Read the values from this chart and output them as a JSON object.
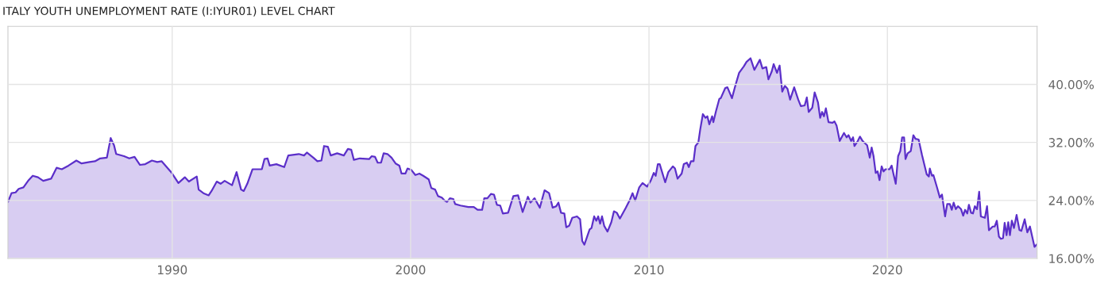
{
  "chart_data": {
    "type": "area",
    "title": "ITALY YOUTH UNEMPLOYMENT RATE (I:IYUR01) LEVEL CHART",
    "x": [
      1983.11,
      1983.26,
      1983.43,
      1983.56,
      1983.76,
      1983.98,
      1984.15,
      1984.37,
      1984.59,
      1984.92,
      1985.15,
      1985.37,
      1985.65,
      1985.98,
      1986.2,
      1986.53,
      1986.76,
      1986.98,
      1987.26,
      1987.42,
      1987.56,
      1987.65,
      1987.98,
      1988.2,
      1988.42,
      1988.65,
      1988.87,
      1989.15,
      1989.37,
      1989.56,
      1989.98,
      1990.26,
      1990.53,
      1990.7,
      1991.03,
      1991.11,
      1991.31,
      1991.53,
      1991.65,
      1991.87,
      1992.03,
      1992.2,
      1992.51,
      1992.7,
      1992.89,
      1993.0,
      1993.15,
      1993.37,
      1993.76,
      1993.87,
      1994.0,
      1994.09,
      1994.37,
      1994.7,
      1994.87,
      1995.31,
      1995.53,
      1995.65,
      1995.92,
      1996.09,
      1996.26,
      1996.37,
      1996.53,
      1996.65,
      1996.92,
      1997.2,
      1997.37,
      1997.51,
      1997.62,
      1997.87,
      1998.26,
      1998.37,
      1998.51,
      1998.62,
      1998.76,
      1998.87,
      1999.03,
      1999.2,
      1999.37,
      1999.53,
      1999.62,
      1999.78,
      1999.87,
      2000.03,
      2000.2,
      2000.37,
      2000.53,
      2000.76,
      2000.87,
      2001.03,
      2001.15,
      2001.31,
      2001.42,
      2001.53,
      2001.65,
      2001.79,
      2001.87,
      2002.09,
      2002.42,
      2002.65,
      2002.81,
      2003.0,
      2003.09,
      2003.22,
      2003.37,
      2003.5,
      2003.62,
      2003.76,
      2003.87,
      2004.09,
      2004.31,
      2004.51,
      2004.7,
      2004.92,
      2005.03,
      2005.2,
      2005.42,
      2005.62,
      2005.81,
      2005.96,
      2006.11,
      2006.2,
      2006.31,
      2006.45,
      2006.53,
      2006.65,
      2006.78,
      2006.98,
      2007.11,
      2007.2,
      2007.29,
      2007.51,
      2007.59,
      2007.7,
      2007.79,
      2007.87,
      2007.95,
      2008.03,
      2008.12,
      2008.26,
      2008.42,
      2008.53,
      2008.65,
      2008.78,
      2009.03,
      2009.2,
      2009.31,
      2009.42,
      2009.59,
      2009.73,
      2009.92,
      2010.07,
      2010.2,
      2010.28,
      2010.37,
      2010.45,
      2010.68,
      2010.81,
      2011.0,
      2011.09,
      2011.2,
      2011.37,
      2011.46,
      2011.59,
      2011.67,
      2011.76,
      2011.87,
      2011.95,
      2012.07,
      2012.15,
      2012.26,
      2012.37,
      2012.45,
      2012.53,
      2012.65,
      2012.7,
      2012.81,
      2012.95,
      2013.01,
      2013.2,
      2013.29,
      2013.48,
      2013.62,
      2013.78,
      2013.98,
      2014.09,
      2014.26,
      2014.42,
      2014.65,
      2014.76,
      2014.92,
      2015.01,
      2015.15,
      2015.23,
      2015.37,
      2015.48,
      2015.59,
      2015.7,
      2015.81,
      2015.92,
      2016.09,
      2016.26,
      2016.37,
      2016.53,
      2016.62,
      2016.7,
      2016.85,
      2016.95,
      2017.09,
      2017.18,
      2017.26,
      2017.34,
      2017.42,
      2017.53,
      2017.7,
      2017.78,
      2017.87,
      2018.0,
      2018.18,
      2018.29,
      2018.37,
      2018.48,
      2018.56,
      2018.62,
      2018.76,
      2018.85,
      2018.96,
      2019.15,
      2019.26,
      2019.34,
      2019.42,
      2019.51,
      2019.59,
      2019.67,
      2019.76,
      2019.84,
      2019.92,
      2020.09,
      2020.18,
      2020.26,
      2020.35,
      2020.45,
      2020.54,
      2020.62,
      2020.7,
      2020.76,
      2020.85,
      2020.98,
      2021.09,
      2021.18,
      2021.31,
      2021.45,
      2021.65,
      2021.74,
      2021.78,
      2021.87,
      2021.93,
      2022.09,
      2022.2,
      2022.29,
      2022.42,
      2022.51,
      2022.62,
      2022.7,
      2022.78,
      2022.87,
      2022.96,
      2023.09,
      2023.18,
      2023.26,
      2023.35,
      2023.42,
      2023.51,
      2023.59,
      2023.67,
      2023.76,
      2023.85,
      2023.92,
      2024.09,
      2024.18,
      2024.26,
      2024.42,
      2024.5,
      2024.59,
      2024.68,
      2024.76,
      2024.85,
      2024.92,
      2025.0,
      2025.07,
      2025.14,
      2025.22,
      2025.31,
      2025.42,
      2025.54,
      2025.62,
      2025.76,
      2025.87,
      2025.98,
      2026.17,
      2026.26
    ],
    "series": [
      {
        "color": "#5b2fc9",
        "values": [
          23.8,
          25.0,
          25.1,
          25.6,
          25.8,
          26.8,
          27.4,
          27.2,
          26.7,
          27.0,
          28.5,
          28.3,
          28.8,
          29.5,
          29.1,
          29.3,
          29.4,
          29.8,
          29.9,
          32.6,
          31.6,
          30.4,
          30.1,
          29.8,
          30.0,
          28.9,
          29.0,
          29.5,
          29.3,
          29.4,
          27.8,
          26.4,
          27.2,
          26.6,
          27.3,
          25.5,
          25.0,
          24.7,
          25.3,
          26.6,
          26.3,
          26.7,
          26.1,
          27.9,
          25.5,
          25.3,
          26.3,
          28.3,
          28.3,
          29.7,
          29.8,
          28.8,
          29.0,
          28.6,
          30.2,
          30.4,
          30.2,
          30.6,
          29.9,
          29.4,
          29.5,
          31.5,
          31.4,
          30.2,
          30.5,
          30.2,
          31.1,
          31.0,
          29.6,
          29.8,
          29.7,
          30.1,
          30.0,
          29.2,
          29.2,
          30.5,
          30.4,
          29.9,
          29.1,
          28.8,
          27.7,
          27.7,
          28.4,
          28.2,
          27.5,
          27.7,
          27.4,
          26.9,
          25.7,
          25.5,
          24.6,
          24.4,
          24.0,
          23.8,
          24.3,
          24.2,
          23.5,
          23.3,
          23.1,
          23.1,
          22.7,
          22.7,
          24.3,
          24.3,
          24.9,
          24.8,
          23.4,
          23.3,
          22.2,
          22.3,
          24.6,
          24.7,
          22.4,
          24.5,
          23.7,
          24.3,
          23.0,
          25.4,
          25.0,
          23.0,
          23.2,
          23.7,
          22.3,
          22.2,
          20.3,
          20.5,
          21.6,
          21.8,
          21.4,
          18.4,
          17.9,
          20.0,
          20.2,
          21.8,
          21.2,
          21.8,
          20.8,
          21.8,
          20.5,
          19.7,
          21.0,
          22.5,
          22.3,
          21.5,
          23.0,
          24.1,
          25.0,
          24.0,
          25.8,
          26.4,
          25.9,
          26.7,
          27.8,
          27.4,
          29.0,
          29.0,
          26.5,
          27.9,
          28.7,
          28.4,
          27.0,
          27.7,
          29.0,
          29.2,
          28.6,
          29.4,
          29.4,
          31.5,
          32.0,
          33.8,
          35.9,
          35.4,
          35.6,
          34.5,
          35.6,
          34.8,
          36.3,
          38.0,
          38.1,
          39.5,
          39.6,
          38.1,
          39.8,
          41.6,
          42.5,
          43.1,
          43.6,
          42.0,
          43.4,
          42.2,
          42.4,
          40.7,
          41.8,
          42.8,
          41.6,
          42.6,
          39.0,
          39.8,
          39.4,
          37.9,
          39.6,
          37.9,
          37.0,
          37.1,
          38.2,
          36.2,
          36.8,
          38.9,
          37.5,
          35.4,
          36.2,
          35.6,
          36.7,
          34.8,
          34.7,
          34.9,
          34.3,
          32.2,
          33.3,
          32.7,
          33.0,
          32.2,
          32.7,
          31.5,
          32.2,
          32.8,
          32.2,
          31.6,
          29.9,
          31.3,
          30.1,
          27.8,
          28.0,
          26.8,
          28.7,
          28.0,
          28.3,
          28.3,
          28.8,
          27.6,
          26.3,
          30.1,
          30.8,
          32.7,
          32.7,
          29.7,
          30.5,
          30.8,
          33.0,
          32.5,
          32.4,
          30.3,
          27.6,
          27.3,
          28.4,
          27.4,
          27.5,
          25.7,
          24.4,
          24.8,
          21.8,
          23.5,
          23.5,
          22.7,
          23.7,
          22.8,
          23.2,
          22.8,
          21.9,
          22.7,
          22.2,
          23.4,
          22.3,
          22.2,
          23.2,
          22.8,
          25.2,
          21.8,
          21.6,
          23.2,
          19.9,
          20.4,
          20.4,
          21.2,
          19.0,
          18.7,
          18.8,
          20.9,
          19.2,
          21.0,
          19.2,
          21.2,
          20.2,
          22.0,
          19.9,
          19.8,
          21.4,
          19.6,
          20.4,
          17.6,
          17.9
        ]
      }
    ],
    "xlim": [
      1983.11,
      2026.28
    ],
    "xticks": [
      1990,
      2000,
      2010,
      2020
    ],
    "ylim": [
      16,
      48
    ],
    "yticks": [
      {
        "value": 16,
        "label": "16.00%"
      },
      {
        "value": 24,
        "label": "24.00%"
      },
      {
        "value": 32,
        "label": "32.00%"
      },
      {
        "value": 40,
        "label": "40.00%"
      }
    ],
    "grid": true,
    "marker": "none",
    "line_style": "solid"
  }
}
